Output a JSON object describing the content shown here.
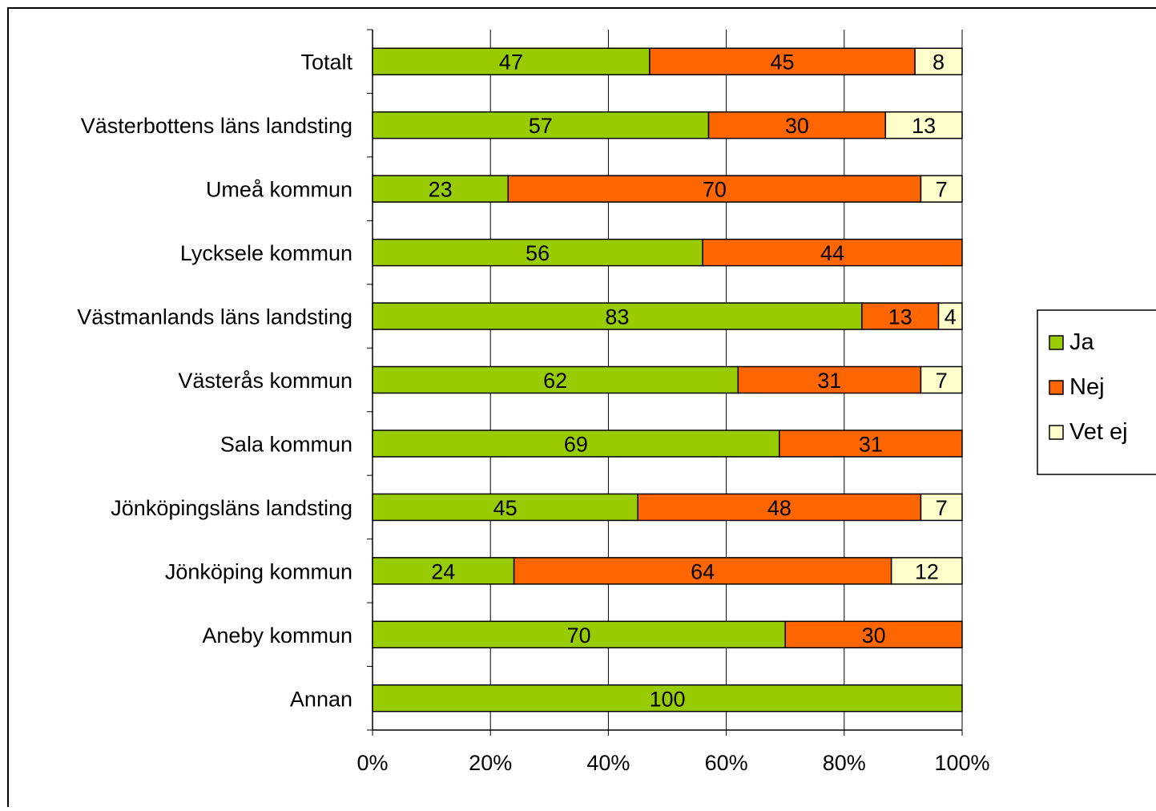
{
  "chart_data": {
    "type": "bar",
    "orientation": "horizontal",
    "stacked": "percent",
    "categories": [
      "Totalt",
      "Västerbottens läns landsting",
      "Umeå kommun",
      "Lycksele kommun",
      "Västmanlands läns landsting",
      "Västerås kommun",
      "Sala kommun",
      "Jönköpingsläns landsting",
      "Jönköping kommun",
      "Aneby kommun",
      "Annan"
    ],
    "series": [
      {
        "name": "Ja",
        "color": "#99cc00",
        "values": [
          47,
          57,
          23,
          56,
          83,
          62,
          69,
          45,
          24,
          70,
          100
        ]
      },
      {
        "name": "Nej",
        "color": "#ff6600",
        "values": [
          45,
          30,
          70,
          44,
          13,
          31,
          31,
          48,
          64,
          30,
          0
        ]
      },
      {
        "name": "Vet ej",
        "color": "#ffffcc",
        "values": [
          8,
          13,
          7,
          0,
          4,
          7,
          0,
          7,
          12,
          0,
          0
        ]
      }
    ],
    "xlim": [
      0,
      100
    ],
    "xticks": [
      "0%",
      "20%",
      "40%",
      "60%",
      "80%",
      "100%"
    ],
    "grid": "vertical",
    "legend_position": "right"
  }
}
